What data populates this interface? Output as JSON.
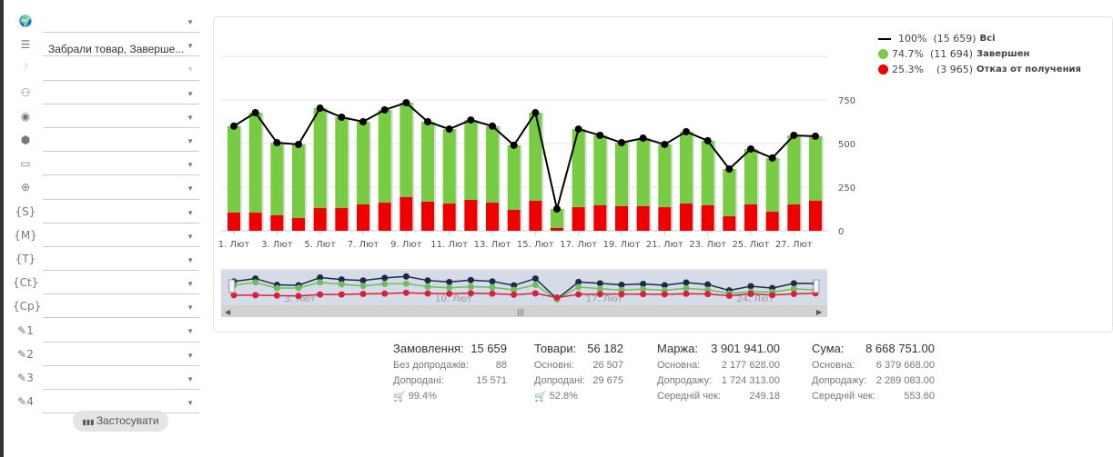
{
  "filters": [
    {
      "icon": "globe-icon",
      "glyph": "🌍",
      "value": ""
    },
    {
      "icon": "status-list-icon",
      "glyph": "☰",
      "value": "Забрали товар, Заверше..."
    },
    {
      "icon": "question-icon",
      "glyph": "?",
      "value": "",
      "disabled": true
    },
    {
      "icon": "hierarchy-icon",
      "glyph": "⚇",
      "value": ""
    },
    {
      "icon": "user-icon",
      "glyph": "◉",
      "value": ""
    },
    {
      "icon": "box-icon",
      "glyph": "⬢",
      "value": ""
    },
    {
      "icon": "money-icon",
      "glyph": "▭",
      "value": ""
    },
    {
      "icon": "web-icon",
      "glyph": "⊕",
      "value": ""
    },
    {
      "icon": "s-tag-icon",
      "glyph": "{S}",
      "value": ""
    },
    {
      "icon": "m-tag-icon",
      "glyph": "{M}",
      "value": ""
    },
    {
      "icon": "t-tag-icon",
      "glyph": "{T}",
      "value": ""
    },
    {
      "icon": "ct-tag-icon",
      "glyph": "{Ct}",
      "value": ""
    },
    {
      "icon": "cp-tag-icon",
      "glyph": "{Cp}",
      "value": ""
    },
    {
      "icon": "pencil-1-icon",
      "glyph": "✎1",
      "value": ""
    },
    {
      "icon": "pencil-2-icon",
      "glyph": "✎2",
      "value": ""
    },
    {
      "icon": "pencil-3-icon",
      "glyph": "✎3",
      "value": ""
    },
    {
      "icon": "pencil-4-icon",
      "glyph": "✎4",
      "value": ""
    }
  ],
  "apply_label": "Застосувати",
  "legend": [
    {
      "pct": "100%",
      "count": "(15 659)",
      "name": "Всі",
      "color": "#000000"
    },
    {
      "pct": "74.7%",
      "count": "(11 694)",
      "name": "Завершен",
      "color": "#77cc44"
    },
    {
      "pct": "25.3%",
      "count": "  (3 965)",
      "name": "Отказ от получения",
      "color": "#ee0000"
    }
  ],
  "chart_data": {
    "type": "bar",
    "stacked": true,
    "categories": [
      "1. Лют",
      "2. Лют",
      "3. Лют",
      "4. Лют",
      "5. Лют",
      "6. Лют",
      "7. Лют",
      "8. Лют",
      "9. Лют",
      "10. Лют",
      "11. Лют",
      "12. Лют",
      "13. Лют",
      "14. Лют",
      "15. Лют",
      "16. Лют",
      "17. Лют",
      "18. Лют",
      "19. Лют",
      "20. Лют",
      "21. Лют",
      "22. Лют",
      "23. Лют",
      "24. Лют",
      "25. Лют",
      "26. Лют",
      "27. Лют",
      "28. Лют"
    ],
    "x_tick_labels": [
      "1. Лют",
      "3. Лют",
      "5. Лют",
      "7. Лют",
      "9. Лют",
      "11. Лют",
      "13. Лют",
      "15. Лют",
      "17. Лют",
      "19. Лют",
      "21. Лют",
      "23. Лют",
      "25. Лют",
      "27. Лют"
    ],
    "navigator_labels": [
      "3. Лют",
      "10. Лют",
      "17. Лют",
      "24. Лют"
    ],
    "y_ticks": [
      0,
      250,
      500,
      750
    ],
    "ylim": [
      0,
      1000
    ],
    "series": [
      {
        "name": "Всі",
        "type": "line",
        "color": "#000000",
        "values": [
          600,
          677,
          505,
          495,
          703,
          651,
          625,
          693,
          734,
          625,
          583,
          635,
          600,
          490,
          677,
          125,
          583,
          547,
          505,
          531,
          495,
          568,
          516,
          354,
          469,
          417,
          547,
          542
        ]
      },
      {
        "name": "Завершен",
        "type": "bar",
        "color": "#77cc44",
        "values": [
          496,
          573,
          416,
          422,
          573,
          521,
          474,
          532,
          541,
          458,
          427,
          458,
          439,
          370,
          505,
          109,
          448,
          401,
          364,
          390,
          360,
          412,
          370,
          271,
          318,
          308,
          396,
          370
        ]
      },
      {
        "name": "Отказ от получения",
        "type": "bar",
        "color": "#ee0000",
        "values": [
          104,
          104,
          89,
          73,
          130,
          130,
          151,
          161,
          193,
          167,
          156,
          177,
          161,
          120,
          172,
          16,
          135,
          146,
          141,
          141,
          135,
          156,
          146,
          83,
          151,
          109,
          151,
          172
        ]
      }
    ]
  },
  "summary": [
    {
      "label": "Замовлення:",
      "value": "15 659",
      "rows": [
        [
          "Без допродажів:",
          "88"
        ],
        [
          "Допродані:",
          "15 571"
        ]
      ],
      "cart": "99.4%"
    },
    {
      "label": "Товари:",
      "value": "56 182",
      "rows": [
        [
          "Основні:",
          "26 507"
        ],
        [
          "Допродані:",
          "29 675"
        ]
      ],
      "cart": "52.8%"
    },
    {
      "label": "Маржа:",
      "value": "3 901 941.00",
      "rows": [
        [
          "Основна:",
          "2 177 628.00"
        ],
        [
          "Допродажу:",
          "1 724 313.00"
        ],
        [
          "Середній чек:",
          "249.18"
        ]
      ]
    },
    {
      "label": "Сума:",
      "value": "8 668 751.00",
      "rows": [
        [
          "Основна:",
          "6 379 668.00"
        ],
        [
          "Допродажу:",
          "2 289 083.00"
        ],
        [
          "Середній чек:",
          "553.60"
        ]
      ]
    }
  ]
}
